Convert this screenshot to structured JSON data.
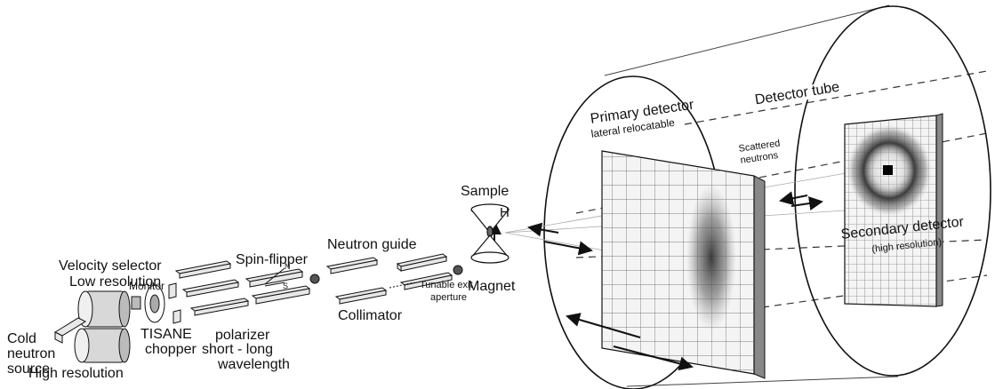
{
  "labels": {
    "velocity_selector": "Velocity selector",
    "low_resolution": "Low resolution",
    "monitor": "Monitor",
    "spin_flipper": "Spin-flipper",
    "neutron_guide": "Neutron guide",
    "sample": "Sample",
    "h": "H",
    "n": "N",
    "s": "S",
    "cold": "Cold",
    "neutron": "neutron",
    "source": "source",
    "tisane": "TISANE",
    "chopper": "chopper",
    "high_resolution": "High resolution",
    "polarizer": "polarizer",
    "short_long": "short - long",
    "wavelength": "wavelength",
    "collimator": "Collimator",
    "tunable_exit": "Tunable exit",
    "aperture": "aperture",
    "magnet": "Magnet",
    "primary_detector": "Primary detector",
    "lateral_relocatable": "lateral relocatable",
    "scattered": "Scattered",
    "neutrons": "neutrons",
    "detector_tube": "Detector tube",
    "secondary_detector": "Secondary detector",
    "high_resolution_paren": "(high resolution)"
  },
  "colors": {
    "line": "#111111",
    "box_fill": "#e8e8e8",
    "detector_fill": "#f4f4f4",
    "intensity": "#3a3a3a"
  }
}
